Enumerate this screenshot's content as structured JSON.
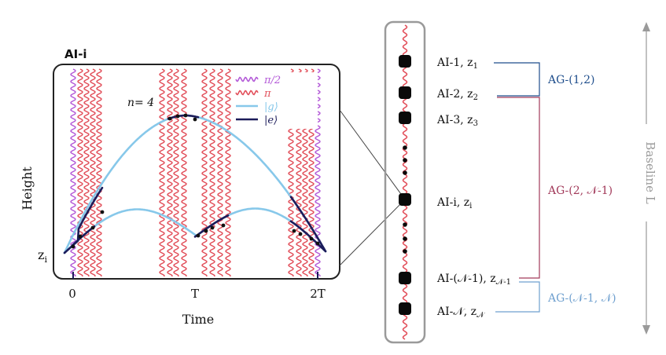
{
  "panel": {
    "title": "AI-i",
    "n_label": "n= 4",
    "ylabel": "Height",
    "xlabel": "Time",
    "z_label": "z",
    "z_sub": "i",
    "xticks": [
      "0",
      "T",
      "2T"
    ]
  },
  "legend": [
    {
      "label": "π/2",
      "color": "#b45bd8",
      "style": "wavy"
    },
    {
      "label": "π",
      "color": "#e2505b",
      "style": "wavy"
    },
    {
      "label": "|g⟩",
      "color": "#87c8ea",
      "style": "line"
    },
    {
      "label": "|e⟩",
      "color": "#1c1c5a",
      "style": "line"
    }
  ],
  "stack": {
    "items": [
      {
        "text": "AI-1, z",
        "sub": "1"
      },
      {
        "text": "AI-2, z",
        "sub": "2"
      },
      {
        "text": "AI-3, z",
        "sub": "3"
      },
      {
        "text": "AI-i, z",
        "sub": "i"
      },
      {
        "text": "AI-(𝒩-1), z",
        "sub": "𝒩-1"
      },
      {
        "text": "AI-𝒩, z",
        "sub": "𝒩"
      }
    ]
  },
  "gradiometers": [
    {
      "label": "AG-(1,2)",
      "color": "#1f4e8c"
    },
    {
      "label": "AG-(2, 𝒩-1)",
      "color": "#a23a5a"
    },
    {
      "label": "AG-(𝒩-1, 𝒩)",
      "color": "#6fa0cf"
    }
  ],
  "baseline": {
    "label": "Baseline L",
    "color": "#9a9a9a"
  },
  "colors": {
    "pi": "#e2505b",
    "pi_half": "#b45bd8",
    "ground": "#87c8ea",
    "excited": "#1c1c5a",
    "frame": "#222222",
    "tube": "#9a9a9a"
  }
}
